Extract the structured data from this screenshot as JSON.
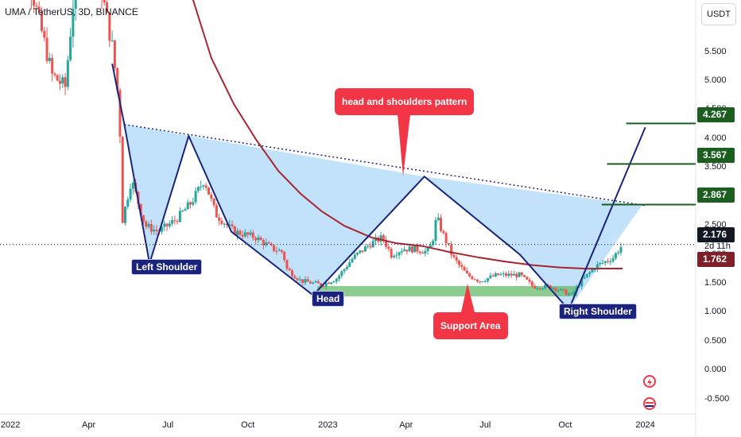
{
  "header": {
    "symbol_title": "UMA / TetherUS, 3D, BINANCE",
    "currency": "USDT"
  },
  "chart_data": {
    "type": "candlestick",
    "title": "UMA / TetherUS, 3D, BINANCE",
    "y_unit": "USDT",
    "ylim": [
      -0.75,
      6.4
    ],
    "xlim": [
      "2021-12-20",
      "2024-02-28"
    ],
    "y_ticks": [
      "5.500",
      "5.000",
      "4.500",
      "4.000",
      "3.500",
      "3.000",
      "2.500",
      "2.000",
      "1.500",
      "1.000",
      "0.500",
      "0.000",
      "-0.500"
    ],
    "x_ticks": [
      {
        "label": "2022",
        "date": "2022-01-01"
      },
      {
        "label": "Apr",
        "date": "2022-04-01"
      },
      {
        "label": "Jul",
        "date": "2022-07-01"
      },
      {
        "label": "Oct",
        "date": "2022-10-01"
      },
      {
        "label": "2023",
        "date": "2023-01-01"
      },
      {
        "label": "Apr",
        "date": "2023-04-01"
      },
      {
        "label": "Jul",
        "date": "2023-07-01"
      },
      {
        "label": "Oct",
        "date": "2023-10-01"
      },
      {
        "label": "2024",
        "date": "2024-01-01"
      }
    ],
    "price_path": [
      [
        "2022-01-01",
        8.9
      ],
      [
        "2022-01-25",
        6.6
      ],
      [
        "2022-02-18",
        5.1
      ],
      [
        "2022-03-05",
        4.9
      ],
      [
        "2022-03-22",
        7.6
      ],
      [
        "2022-04-10",
        7.0
      ],
      [
        "2022-04-28",
        5.6
      ],
      [
        "2022-05-06",
        4.6
      ],
      [
        "2022-05-10",
        2.6
      ],
      [
        "2022-05-20",
        3.3
      ],
      [
        "2022-06-05",
        2.5
      ],
      [
        "2022-06-20",
        2.4
      ],
      [
        "2022-07-10",
        2.6
      ],
      [
        "2022-07-28",
        2.9
      ],
      [
        "2022-08-12",
        3.3
      ],
      [
        "2022-08-25",
        2.7
      ],
      [
        "2022-09-15",
        2.4
      ],
      [
        "2022-10-10",
        2.3
      ],
      [
        "2022-10-30",
        2.1
      ],
      [
        "2022-11-10",
        2.05
      ],
      [
        "2022-11-15",
        1.75
      ],
      [
        "2022-12-01",
        1.55
      ],
      [
        "2022-12-25",
        1.48
      ],
      [
        "2023-01-12",
        1.6
      ],
      [
        "2023-01-30",
        1.95
      ],
      [
        "2023-02-20",
        2.2
      ],
      [
        "2023-03-05",
        2.3
      ],
      [
        "2023-03-15",
        2.0
      ],
      [
        "2023-03-28",
        2.1
      ],
      [
        "2023-04-10",
        2.1
      ],
      [
        "2023-04-25",
        2.05
      ],
      [
        "2023-05-01",
        2.2
      ],
      [
        "2023-05-06",
        2.65
      ],
      [
        "2023-05-15",
        2.3
      ],
      [
        "2023-05-25",
        1.95
      ],
      [
        "2023-06-10",
        1.65
      ],
      [
        "2023-06-25",
        1.55
      ],
      [
        "2023-07-15",
        1.65
      ],
      [
        "2023-08-10",
        1.65
      ],
      [
        "2023-08-25",
        1.45
      ],
      [
        "2023-09-15",
        1.45
      ],
      [
        "2023-10-08",
        1.3
      ],
      [
        "2023-10-20",
        1.55
      ],
      [
        "2023-11-05",
        1.8
      ],
      [
        "2023-11-25",
        1.95
      ],
      [
        "2023-12-06",
        2.18
      ]
    ],
    "series": [
      {
        "name": "MA",
        "kind": "line",
        "color": "#a8262f",
        "points": [
          [
            "2022-07-28",
            6.5
          ],
          [
            "2022-08-20",
            5.4
          ],
          [
            "2022-09-15",
            4.6
          ],
          [
            "2022-10-10",
            4.0
          ],
          [
            "2022-11-05",
            3.45
          ],
          [
            "2022-12-01",
            3.05
          ],
          [
            "2022-12-25",
            2.75
          ],
          [
            "2023-01-20",
            2.5
          ],
          [
            "2023-02-20",
            2.3
          ],
          [
            "2023-03-20",
            2.2
          ],
          [
            "2023-04-20",
            2.15
          ],
          [
            "2023-05-20",
            2.05
          ],
          [
            "2023-06-25",
            1.95
          ],
          [
            "2023-07-25",
            1.88
          ],
          [
            "2023-08-25",
            1.82
          ],
          [
            "2023-09-25",
            1.78
          ],
          [
            "2023-10-25",
            1.76
          ],
          [
            "2023-12-06",
            1.762
          ]
        ]
      }
    ],
    "pattern": {
      "label": "head and shoulders pattern",
      "path": [
        [
          "2022-04-28",
          5.3
        ],
        [
          "2022-05-12",
          4.25
        ],
        [
          "2022-06-10",
          1.85
        ],
        [
          "2022-07-25",
          4.05
        ],
        [
          "2022-09-12",
          2.4
        ],
        [
          "2022-12-15",
          1.3
        ],
        [
          "2023-04-22",
          3.35
        ],
        [
          "2023-08-10",
          2.0
        ],
        [
          "2023-10-05",
          1.05
        ],
        [
          "2024-01-01",
          4.2
        ]
      ],
      "neckline": [
        [
          "2022-05-12",
          4.25
        ],
        [
          "2024-01-01",
          2.85
        ]
      ],
      "shaded_polygon": [
        [
          "2022-05-12",
          4.25
        ],
        [
          "2022-06-10",
          1.85
        ],
        [
          "2022-07-25",
          4.05
        ],
        [
          "2022-09-12",
          2.4
        ],
        [
          "2022-12-15",
          1.3
        ],
        [
          "2023-04-22",
          3.35
        ],
        [
          "2023-08-10",
          2.0
        ],
        [
          "2023-10-05",
          1.05
        ],
        [
          "2023-12-28",
          2.85
        ],
        [
          "2023-04-22",
          3.35
        ]
      ]
    },
    "support_zone": {
      "label": "Support Area",
      "x": [
        "2022-12-20",
        "2023-10-15"
      ],
      "y": [
        1.28,
        1.46
      ]
    },
    "target_levels": [
      4.267,
      3.567,
      2.867
    ],
    "annotations": [
      {
        "label": "Left Shoulder",
        "point": [
          "2022-06-10",
          1.85
        ]
      },
      {
        "label": "Head",
        "point": [
          "2022-12-15",
          1.3
        ]
      },
      {
        "label": "Right Shoulder",
        "point": [
          "2023-10-05",
          1.05
        ]
      },
      {
        "label": "head and shoulders pattern"
      },
      {
        "label": "Support Area"
      }
    ],
    "price_labels": [
      {
        "value": "4.267",
        "kind": "target"
      },
      {
        "value": "3.567",
        "kind": "target"
      },
      {
        "value": "2.867",
        "kind": "target"
      },
      {
        "value": "2.176",
        "kind": "last_price",
        "countdown": "2d 11h"
      },
      {
        "value": "1.762",
        "kind": "ma"
      }
    ],
    "colors": {
      "pattern_line": "#1a237e",
      "pattern_fill": "#90caf9",
      "support": "#66bb6a",
      "ma": "#a8262f",
      "target_line": "#1b5e20",
      "up": "#26a69a",
      "down": "#ef5350",
      "callout": "#f23645"
    }
  }
}
